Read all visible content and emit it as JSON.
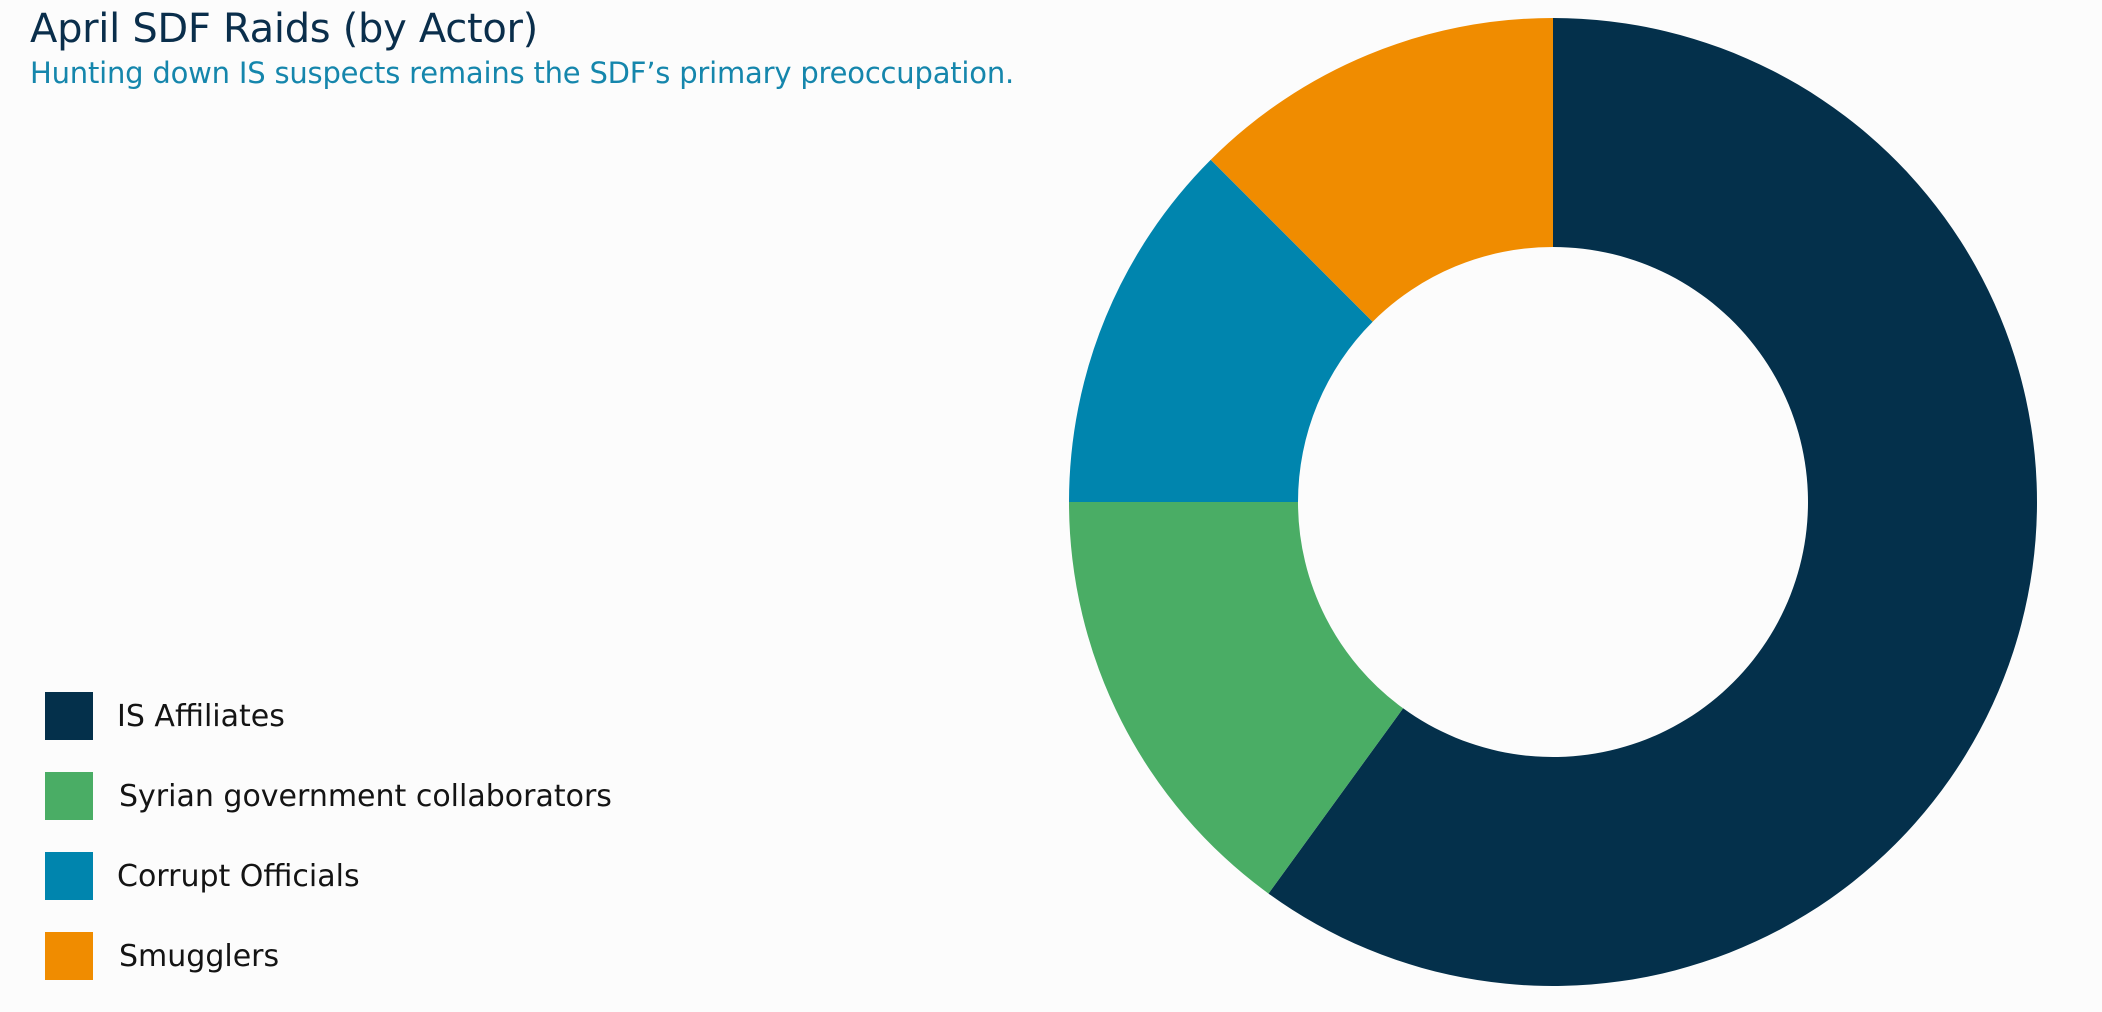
{
  "chart_data": {
    "type": "pie",
    "title": "April SDF Raids (by Actor)",
    "subtitle": "Hunting down IS suspects remains the SDF’s primary preoccupation.",
    "donut": true,
    "legend_position": "bottom-left",
    "categories": [
      "IS Affiliates",
      "Syrian government collaborators",
      "Corrupt Officials",
      "Smugglers"
    ],
    "values": [
      60,
      15,
      12.5,
      12.5
    ],
    "colors": [
      "#04304b",
      "#4aad65",
      "#0085ae",
      "#f08c00"
    ]
  }
}
